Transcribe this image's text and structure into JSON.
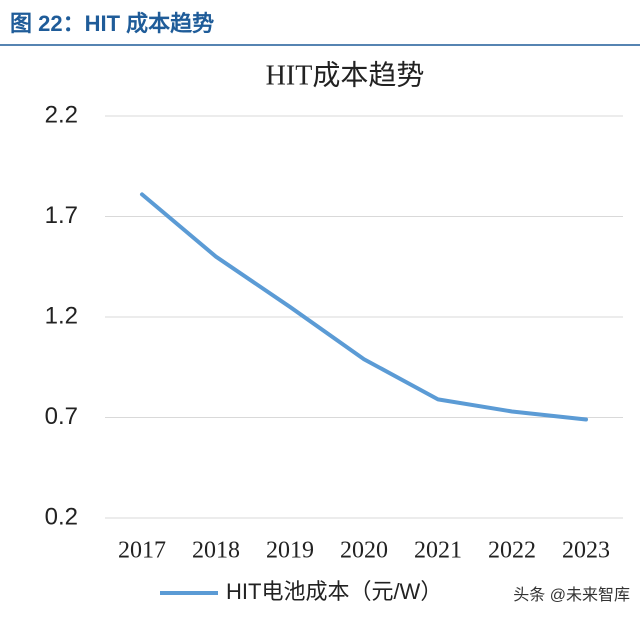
{
  "header": {
    "title": "图 22：HIT 成本趋势"
  },
  "chart_data": {
    "type": "line",
    "title": "HIT成本趋势",
    "categories": [
      "2017",
      "2018",
      "2019",
      "2020",
      "2021",
      "2022",
      "2023"
    ],
    "series": [
      {
        "name": "HIT电池成本（元/W）",
        "color": "#5b9bd5",
        "values": [
          1.81,
          1.5,
          1.25,
          0.99,
          0.79,
          0.73,
          0.69
        ]
      }
    ],
    "ylim": [
      0.2,
      2.2
    ],
    "yticks": [
      0.2,
      0.7,
      1.2,
      1.7,
      2.2
    ],
    "grid": true,
    "legend": "bottom"
  },
  "watermark": "头条 @未来智库"
}
